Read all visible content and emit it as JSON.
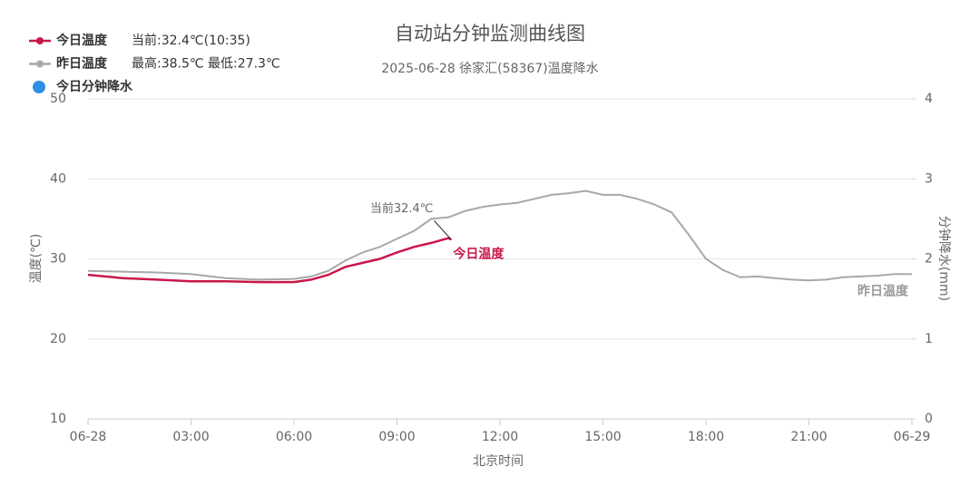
{
  "chart_data": {
    "type": "line",
    "title": "自动站分钟监测曲线图",
    "subtitle": "2025-06-28 徐家汇(58367)温度降水",
    "x_label": "北京时间",
    "y_label": "温度(℃)",
    "y2_label": "分钟降水(mm)",
    "xlim": [
      0,
      24
    ],
    "xticks": [
      {
        "value": 0,
        "label": "06-28"
      },
      {
        "value": 3,
        "label": "03:00"
      },
      {
        "value": 6,
        "label": "06:00"
      },
      {
        "value": 9,
        "label": "09:00"
      },
      {
        "value": 12,
        "label": "12:00"
      },
      {
        "value": 15,
        "label": "15:00"
      },
      {
        "value": 18,
        "label": "18:00"
      },
      {
        "value": 21,
        "label": "21:00"
      },
      {
        "value": 24,
        "label": "06-29"
      }
    ],
    "ylim": [
      10,
      50
    ],
    "yticks": [
      10,
      20,
      30,
      40,
      50
    ],
    "y2lim": [
      0,
      4
    ],
    "y2ticks": [
      0,
      1,
      2,
      3,
      4
    ],
    "grid": true,
    "annotation": "当前32.4℃",
    "series": [
      {
        "name": "今日温度",
        "info": "当前:32.4℃(10:35)",
        "color": "#c8174a",
        "x": [
          0,
          1,
          2,
          3,
          4,
          5,
          6,
          6.5,
          7,
          7.5,
          8,
          8.5,
          9,
          9.5,
          10,
          10.5,
          10.583
        ],
        "values": [
          28.0,
          27.6,
          27.4,
          27.2,
          27.2,
          27.1,
          27.1,
          27.4,
          28.0,
          29.0,
          29.5,
          30.0,
          30.8,
          31.5,
          32.0,
          32.6,
          32.4
        ]
      },
      {
        "name": "昨日温度",
        "info": "最高:38.5℃ 最低:27.3℃",
        "color": "#a8a8a8",
        "x": [
          0,
          1,
          2,
          3,
          4,
          5,
          6,
          6.5,
          7,
          7.5,
          8,
          8.5,
          9,
          9.5,
          10,
          10.5,
          11,
          11.5,
          12,
          12.5,
          13,
          13.5,
          14,
          14.5,
          15,
          15.5,
          16,
          16.5,
          17,
          17.5,
          18,
          18.5,
          19,
          19.5,
          20,
          20.5,
          21,
          21.5,
          22,
          22.5,
          23,
          23.5,
          24
        ],
        "values": [
          28.5,
          28.4,
          28.3,
          28.1,
          27.6,
          27.4,
          27.5,
          27.8,
          28.5,
          29.8,
          30.8,
          31.5,
          32.5,
          33.5,
          35.0,
          35.2,
          36.0,
          36.5,
          36.8,
          37.0,
          37.5,
          38.0,
          38.2,
          38.5,
          38.0,
          38.0,
          37.5,
          36.8,
          35.8,
          33.0,
          30.0,
          28.6,
          27.7,
          27.8,
          27.6,
          27.4,
          27.3,
          27.4,
          27.7,
          27.8,
          27.9,
          28.1,
          28.1
        ]
      },
      {
        "name": "今日分钟降水",
        "color": "#2f8fe8",
        "axis": "y2",
        "x": [],
        "values": []
      }
    ]
  }
}
